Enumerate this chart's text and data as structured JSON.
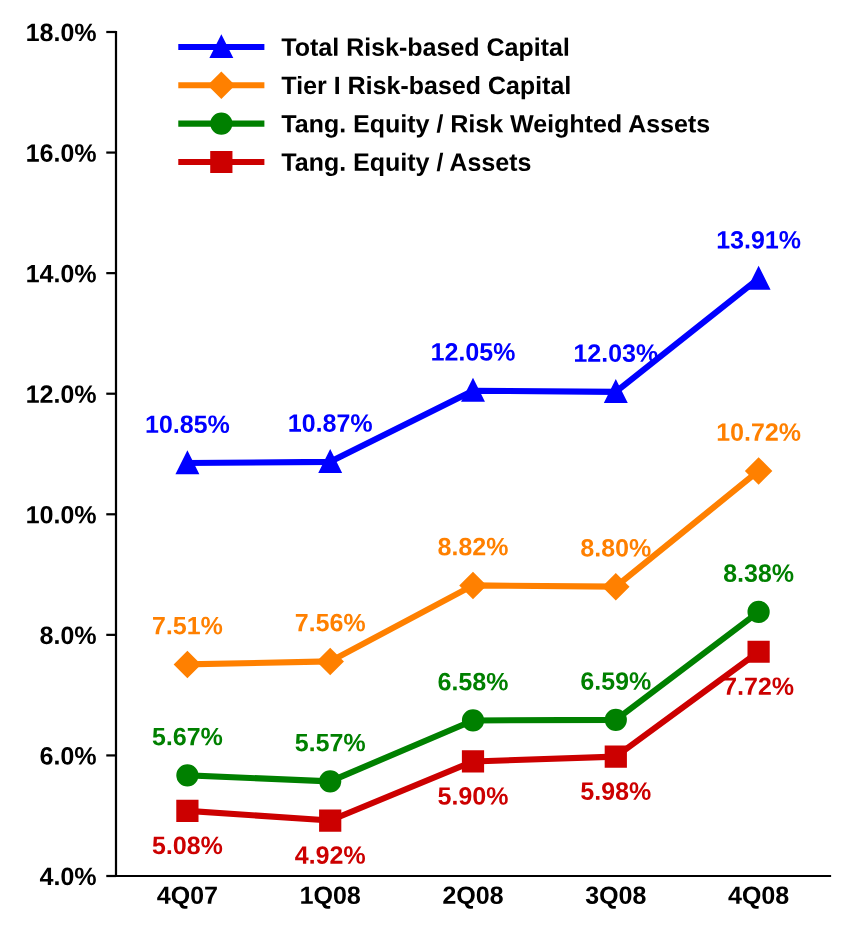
{
  "chart_data": {
    "type": "line",
    "categories": [
      "4Q07",
      "1Q08",
      "2Q08",
      "3Q08",
      "4Q08"
    ],
    "ylim": [
      4,
      18
    ],
    "yticks": [
      {
        "value": 4,
        "label": "4.0%"
      },
      {
        "value": 6,
        "label": "6.0%"
      },
      {
        "value": 8,
        "label": "8.0%"
      },
      {
        "value": 10,
        "label": "10.0%"
      },
      {
        "value": 12,
        "label": "12.0%"
      },
      {
        "value": 14,
        "label": "14.0%"
      },
      {
        "value": 16,
        "label": "16.0%"
      },
      {
        "value": 18,
        "label": "18.0%"
      }
    ],
    "legend": "top left",
    "grid": false,
    "series": [
      {
        "name": "Total Risk-based Capital",
        "color": "#0000ff",
        "marker": "triangle",
        "values": [
          10.85,
          10.87,
          12.05,
          12.03,
          13.91
        ],
        "value_labels": [
          "10.85%",
          "10.87%",
          "12.05%",
          "12.03%",
          "13.91%"
        ]
      },
      {
        "name": "Tier I Risk-based Capital",
        "color": "#ff8000",
        "marker": "diamond",
        "values": [
          7.51,
          7.56,
          8.82,
          8.8,
          10.72
        ],
        "value_labels": [
          "7.51%",
          "7.56%",
          "8.82%",
          "8.80%",
          "10.72%"
        ]
      },
      {
        "name": "Tang. Equity / Risk Weighted Assets",
        "color": "#008000",
        "marker": "circle",
        "values": [
          5.67,
          5.57,
          6.58,
          6.59,
          8.38
        ],
        "value_labels": [
          "5.67%",
          "5.57%",
          "6.58%",
          "6.59%",
          "8.38%"
        ]
      },
      {
        "name": "Tang. Equity / Assets",
        "color": "#cc0000",
        "marker": "square",
        "values": [
          5.08,
          4.92,
          5.9,
          5.98,
          7.72
        ],
        "value_labels": [
          "5.08%",
          "4.92%",
          "5.90%",
          "5.98%",
          "7.72%"
        ]
      }
    ]
  }
}
